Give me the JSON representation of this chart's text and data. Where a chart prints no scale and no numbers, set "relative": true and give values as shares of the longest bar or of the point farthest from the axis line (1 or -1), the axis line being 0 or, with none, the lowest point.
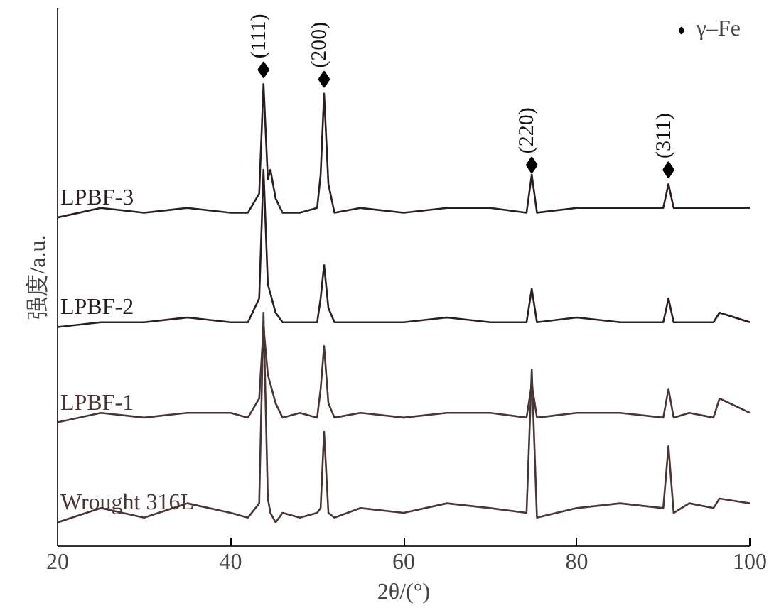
{
  "chart_data": {
    "type": "line",
    "relative": true,
    "xlabel": "2θ/(°)",
    "ylabel": "强度/a.u.",
    "xlim": [
      20,
      100
    ],
    "xticks": [
      20,
      40,
      60,
      80,
      100
    ],
    "grid": false,
    "legend": "top right",
    "line_style": "solid",
    "x": [
      20,
      25,
      30,
      35,
      40,
      42,
      43.3,
      43.8,
      44.3,
      44.6,
      45.2,
      46,
      48,
      50,
      50.4,
      50.8,
      51.3,
      52,
      55,
      60,
      65,
      70,
      74.2,
      74.8,
      75.4,
      80,
      85,
      90,
      90.6,
      91.2,
      93,
      95.8,
      96.5,
      100
    ],
    "series": [
      {
        "name": "LPBF-3",
        "color": "#2a1e1e",
        "values": [
          0.69,
          0.71,
          0.7,
          0.71,
          0.7,
          0.7,
          0.74,
          0.97,
          0.77,
          0.79,
          0.73,
          0.7,
          0.7,
          0.71,
          0.78,
          0.95,
          0.76,
          0.7,
          0.71,
          0.7,
          0.71,
          0.71,
          0.7,
          0.78,
          0.7,
          0.71,
          0.71,
          0.71,
          0.76,
          0.71,
          0.71,
          0.71,
          0.71,
          0.71
        ]
      },
      {
        "name": "LPBF-2",
        "color": "#2a1e1e",
        "values": [
          0.46,
          0.47,
          0.47,
          0.48,
          0.47,
          0.47,
          0.52,
          0.79,
          0.55,
          0.53,
          0.49,
          0.47,
          0.47,
          0.47,
          0.52,
          0.59,
          0.5,
          0.47,
          0.47,
          0.47,
          0.48,
          0.47,
          0.47,
          0.54,
          0.47,
          0.48,
          0.47,
          0.47,
          0.52,
          0.47,
          0.47,
          0.47,
          0.49,
          0.47
        ]
      },
      {
        "name": "LPBF-1",
        "color": "#4a3434",
        "values": [
          0.26,
          0.28,
          0.27,
          0.28,
          0.28,
          0.27,
          0.31,
          0.46,
          0.36,
          0.34,
          0.3,
          0.27,
          0.28,
          0.27,
          0.33,
          0.42,
          0.3,
          0.27,
          0.28,
          0.27,
          0.28,
          0.28,
          0.27,
          0.34,
          0.27,
          0.28,
          0.28,
          0.27,
          0.33,
          0.27,
          0.28,
          0.27,
          0.31,
          0.28
        ]
      },
      {
        "name": "Wrought 316L",
        "color": "#4a3434",
        "values": [
          0.05,
          0.08,
          0.06,
          0.09,
          0.07,
          0.06,
          0.09,
          0.49,
          0.1,
          0.07,
          0.05,
          0.07,
          0.06,
          0.07,
          0.08,
          0.24,
          0.07,
          0.06,
          0.08,
          0.07,
          0.09,
          0.08,
          0.07,
          0.37,
          0.06,
          0.08,
          0.09,
          0.08,
          0.21,
          0.07,
          0.09,
          0.08,
          0.1,
          0.09
        ]
      },
      {
        "name": "γ–Fe",
        "type": "scatter",
        "marker": "diamond",
        "color": "#000000",
        "x": [
          43.8,
          50.8,
          74.8,
          90.6
        ],
        "values": [
          1.0,
          0.98,
          0.8,
          0.79
        ]
      }
    ],
    "annotations": [
      {
        "text": "(111)",
        "x": 43.8,
        "y": 1.0
      },
      {
        "text": "(200)",
        "x": 50.8,
        "y": 0.98
      },
      {
        "text": "(220)",
        "x": 74.8,
        "y": 0.8
      },
      {
        "text": "(311)",
        "x": 90.6,
        "y": 0.79
      }
    ]
  }
}
